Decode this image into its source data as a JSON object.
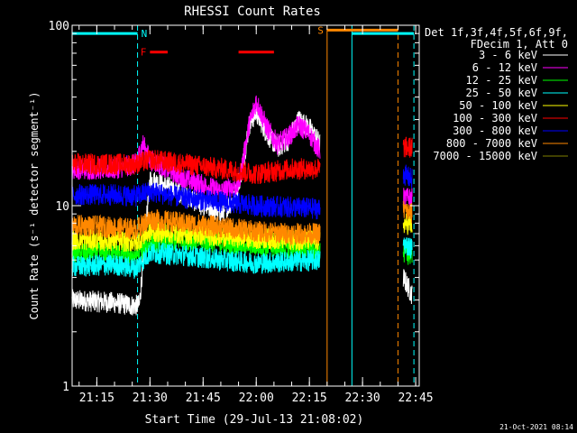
{
  "chart_data": {
    "type": "line",
    "title": "RHESSI Count Rates",
    "xlabel": "Start Time (29-Jul-13 21:08:02)",
    "ylabel": "Count Rate (s⁻¹ detector segment⁻¹)",
    "yscale": "log",
    "ylim": [
      1,
      100
    ],
    "xlim": [
      "21:08:02",
      "22:46:00"
    ],
    "yticks": [
      {
        "value": 1,
        "label": "1"
      },
      {
        "value": 10,
        "label": "10"
      },
      {
        "value": 100,
        "label": "100"
      }
    ],
    "xticks": [
      "21:15",
      "21:30",
      "21:45",
      "22:00",
      "22:15",
      "22:30",
      "22:45"
    ],
    "legend_header": [
      "Det 1f,3f,4f,5f,6f,9f,",
      "FDecim 1, Att 0"
    ],
    "legend_position": "top-right",
    "series": [
      {
        "name": "3 - 6 keV",
        "color": "#ffffff",
        "segments": [
          {
            "x": [
              "21:08",
              "21:20",
              "21:25",
              "21:27",
              "21:30",
              "21:38",
              "21:45",
              "21:50",
              "21:54",
              "21:56",
              "21:58",
              "22:00",
              "22:03",
              "22:06",
              "22:09",
              "22:12",
              "22:15",
              "22:18"
            ],
            "y": [
              3.0,
              2.9,
              2.8,
              2.8,
              14,
              12,
              10,
              9,
              11,
              16,
              28,
              33,
              25,
              21,
              23,
              30,
              27,
              22
            ]
          },
          {
            "x": [
              "22:41:30",
              "22:44:00"
            ],
            "y": [
              4.0,
              3.2
            ]
          }
        ]
      },
      {
        "name": "6 - 12 keV",
        "color": "#ff00ff",
        "segments": [
          {
            "x": [
              "21:08",
              "21:20",
              "21:26",
              "21:28",
              "21:30",
              "21:35",
              "21:40",
              "21:45",
              "21:50",
              "21:55",
              "21:58",
              "22:00",
              "22:03",
              "22:06",
              "22:09",
              "22:12",
              "22:15",
              "22:18"
            ],
            "y": [
              16,
              16,
              17,
              22,
              18,
              16,
              14,
              13,
              12,
              13,
              28,
              38,
              27,
              22,
              24,
              28,
              25,
              20
            ]
          },
          {
            "x": [
              "22:41:30",
              "22:44:00"
            ],
            "y": [
              11,
              11
            ]
          }
        ]
      },
      {
        "name": "12 - 25 keV",
        "color": "#00ff00",
        "segments": [
          {
            "x": [
              "21:08",
              "21:20",
              "21:26",
              "21:30",
              "21:40",
              "21:50",
              "22:00",
              "22:10",
              "22:18"
            ],
            "y": [
              5.5,
              5.5,
              5.3,
              6.2,
              6.5,
              6.2,
              6.0,
              5.8,
              5.6
            ]
          },
          {
            "x": [
              "22:41:30",
              "22:44:00"
            ],
            "y": [
              5.5,
              5.3
            ]
          }
        ]
      },
      {
        "name": "25 - 50 keV",
        "color": "#00ffff",
        "segments": [
          {
            "x": [
              "21:08",
              "21:20",
              "21:26",
              "21:30",
              "21:40",
              "21:50",
              "22:00",
              "22:10",
              "22:18"
            ],
            "y": [
              4.6,
              4.7,
              4.5,
              5.5,
              5.3,
              5.0,
              4.8,
              4.9,
              5.0
            ]
          },
          {
            "x": [
              "22:41:30",
              "22:44:00"
            ],
            "y": [
              6.2,
              5.8
            ]
          }
        ]
      },
      {
        "name": "50 - 100 keV",
        "color": "#ffff00",
        "segments": [
          {
            "x": [
              "21:08",
              "21:20",
              "21:26",
              "21:30",
              "21:40",
              "21:50",
              "22:00",
              "22:10",
              "22:18"
            ],
            "y": [
              6.5,
              6.4,
              6.3,
              7.2,
              7.0,
              6.8,
              6.6,
              6.5,
              6.4
            ]
          },
          {
            "x": [
              "22:41:30",
              "22:44:00"
            ],
            "y": [
              8.0,
              7.8
            ]
          }
        ]
      },
      {
        "name": "100 - 300 keV",
        "color": "#ff0000",
        "segments": [
          {
            "x": [
              "21:08",
              "21:20",
              "21:26",
              "21:30",
              "21:40",
              "21:50",
              "22:00",
              "22:10",
              "22:18"
            ],
            "y": [
              17,
              17,
              17,
              18,
              17,
              16,
              15,
              16,
              16
            ]
          },
          {
            "x": [
              "22:41:30",
              "22:44:00"
            ],
            "y": [
              21,
              21
            ]
          }
        ]
      },
      {
        "name": "300 - 800 keV",
        "color": "#0000ff",
        "segments": [
          {
            "x": [
              "21:08",
              "21:20",
              "21:26",
              "21:30",
              "21:40",
              "21:50",
              "22:00",
              "22:10",
              "22:18"
            ],
            "y": [
              11.5,
              11.5,
              11.3,
              12,
              11,
              10.5,
              10,
              9.8,
              9.6
            ]
          },
          {
            "x": [
              "22:41:30",
              "22:44:00"
            ],
            "y": [
              15,
              14
            ]
          }
        ]
      },
      {
        "name": "800 - 7000 keV",
        "color": "#ff8800",
        "segments": [
          {
            "x": [
              "21:08",
              "21:20",
              "21:26",
              "21:30",
              "21:40",
              "21:50",
              "22:00",
              "22:10",
              "22:18"
            ],
            "y": [
              7.8,
              7.6,
              7.4,
              8.4,
              8.0,
              7.6,
              7.2,
              7.0,
              7.0
            ]
          },
          {
            "x": [
              "22:41:30",
              "22:44:00"
            ],
            "y": [
              9.5,
              9.0
            ]
          }
        ]
      },
      {
        "name": "7000 - 15000 keV",
        "color": "#808000",
        "segments": []
      }
    ],
    "bars": [
      {
        "label": "N",
        "color": "#00ffff",
        "y": 90,
        "from": "21:08",
        "to": "21:26:30"
      },
      {
        "label": "",
        "color": "#00ffff",
        "y": 90,
        "from": "22:27",
        "to": "22:44:30"
      },
      {
        "label": "F",
        "color": "#ff0000",
        "y": 71,
        "from": "21:30",
        "to": "21:35"
      },
      {
        "label": "",
        "color": "#ff0000",
        "y": 71,
        "from": "21:55",
        "to": "22:05"
      },
      {
        "label": "S",
        "color": "#ff8800",
        "y": 94,
        "from": "22:20",
        "to": "22:40"
      }
    ],
    "vlines": [
      {
        "x": "21:08:02",
        "color": "#00ffff",
        "style": "solid"
      },
      {
        "x": "21:26:30",
        "color": "#00ffff",
        "style": "dashed"
      },
      {
        "x": "22:20",
        "color": "#ff8800",
        "style": "solid"
      },
      {
        "x": "22:27",
        "color": "#00ffff",
        "style": "solid"
      },
      {
        "x": "22:40",
        "color": "#ff8800",
        "style": "dashed"
      },
      {
        "x": "22:44:30",
        "color": "#00ffff",
        "style": "dashed"
      }
    ]
  },
  "footer_date": "21-Oct-2021 08:14"
}
